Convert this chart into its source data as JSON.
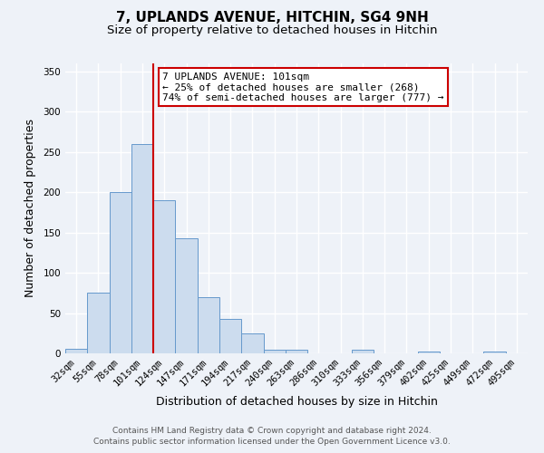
{
  "title": "7, UPLANDS AVENUE, HITCHIN, SG4 9NH",
  "subtitle": "Size of property relative to detached houses in Hitchin",
  "xlabel": "Distribution of detached houses by size in Hitchin",
  "ylabel": "Number of detached properties",
  "bin_labels": [
    "32sqm",
    "55sqm",
    "78sqm",
    "101sqm",
    "124sqm",
    "147sqm",
    "171sqm",
    "194sqm",
    "217sqm",
    "240sqm",
    "263sqm",
    "286sqm",
    "310sqm",
    "333sqm",
    "356sqm",
    "379sqm",
    "402sqm",
    "425sqm",
    "449sqm",
    "472sqm",
    "495sqm"
  ],
  "bar_heights": [
    6,
    75,
    200,
    260,
    190,
    143,
    70,
    43,
    25,
    4,
    4,
    0,
    0,
    4,
    0,
    0,
    2,
    0,
    0,
    2,
    0
  ],
  "bar_color": "#ccdcee",
  "bar_edge_color": "#6699cc",
  "vline_x": 3.5,
  "vline_color": "#cc0000",
  "ylim": [
    0,
    360
  ],
  "yticks": [
    0,
    50,
    100,
    150,
    200,
    250,
    300,
    350
  ],
  "annotation_title": "7 UPLANDS AVENUE: 101sqm",
  "annotation_line1": "← 25% of detached houses are smaller (268)",
  "annotation_line2": "74% of semi-detached houses are larger (777) →",
  "annotation_box_color": "#ffffff",
  "annotation_box_edge_color": "#cc0000",
  "footer1": "Contains HM Land Registry data © Crown copyright and database right 2024.",
  "footer2": "Contains public sector information licensed under the Open Government Licence v3.0.",
  "bg_color": "#eef2f8",
  "grid_color": "#ffffff",
  "title_fontsize": 11,
  "subtitle_fontsize": 9.5,
  "axis_label_fontsize": 9,
  "tick_fontsize": 7.5,
  "footer_fontsize": 6.5,
  "annotation_fontsize": 8
}
